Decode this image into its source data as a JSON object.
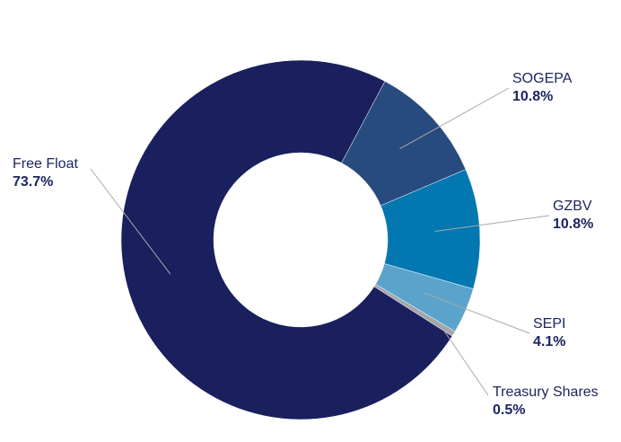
{
  "chart_data": {
    "type": "pie",
    "subtype": "donut",
    "slices": [
      {
        "name": "SOGEPA",
        "value": 10.8,
        "label": "10.8%",
        "color": "#284b7f"
      },
      {
        "name": "GZBV",
        "value": 10.8,
        "label": "10.8%",
        "color": "#0377b0"
      },
      {
        "name": "SEPI",
        "value": 4.1,
        "label": "4.1%",
        "color": "#5aa4cc"
      },
      {
        "name": "Treasury Shares",
        "value": 0.5,
        "label": "0.5%",
        "color": "#a3a6ab"
      },
      {
        "name": "Free Float",
        "value": 73.7,
        "label": "73.7%",
        "color": "#1a1f5d"
      }
    ],
    "start_angle_deg": 28,
    "direction": "clockwise",
    "legend": "none",
    "labels": "outside-with-leader-lines"
  }
}
